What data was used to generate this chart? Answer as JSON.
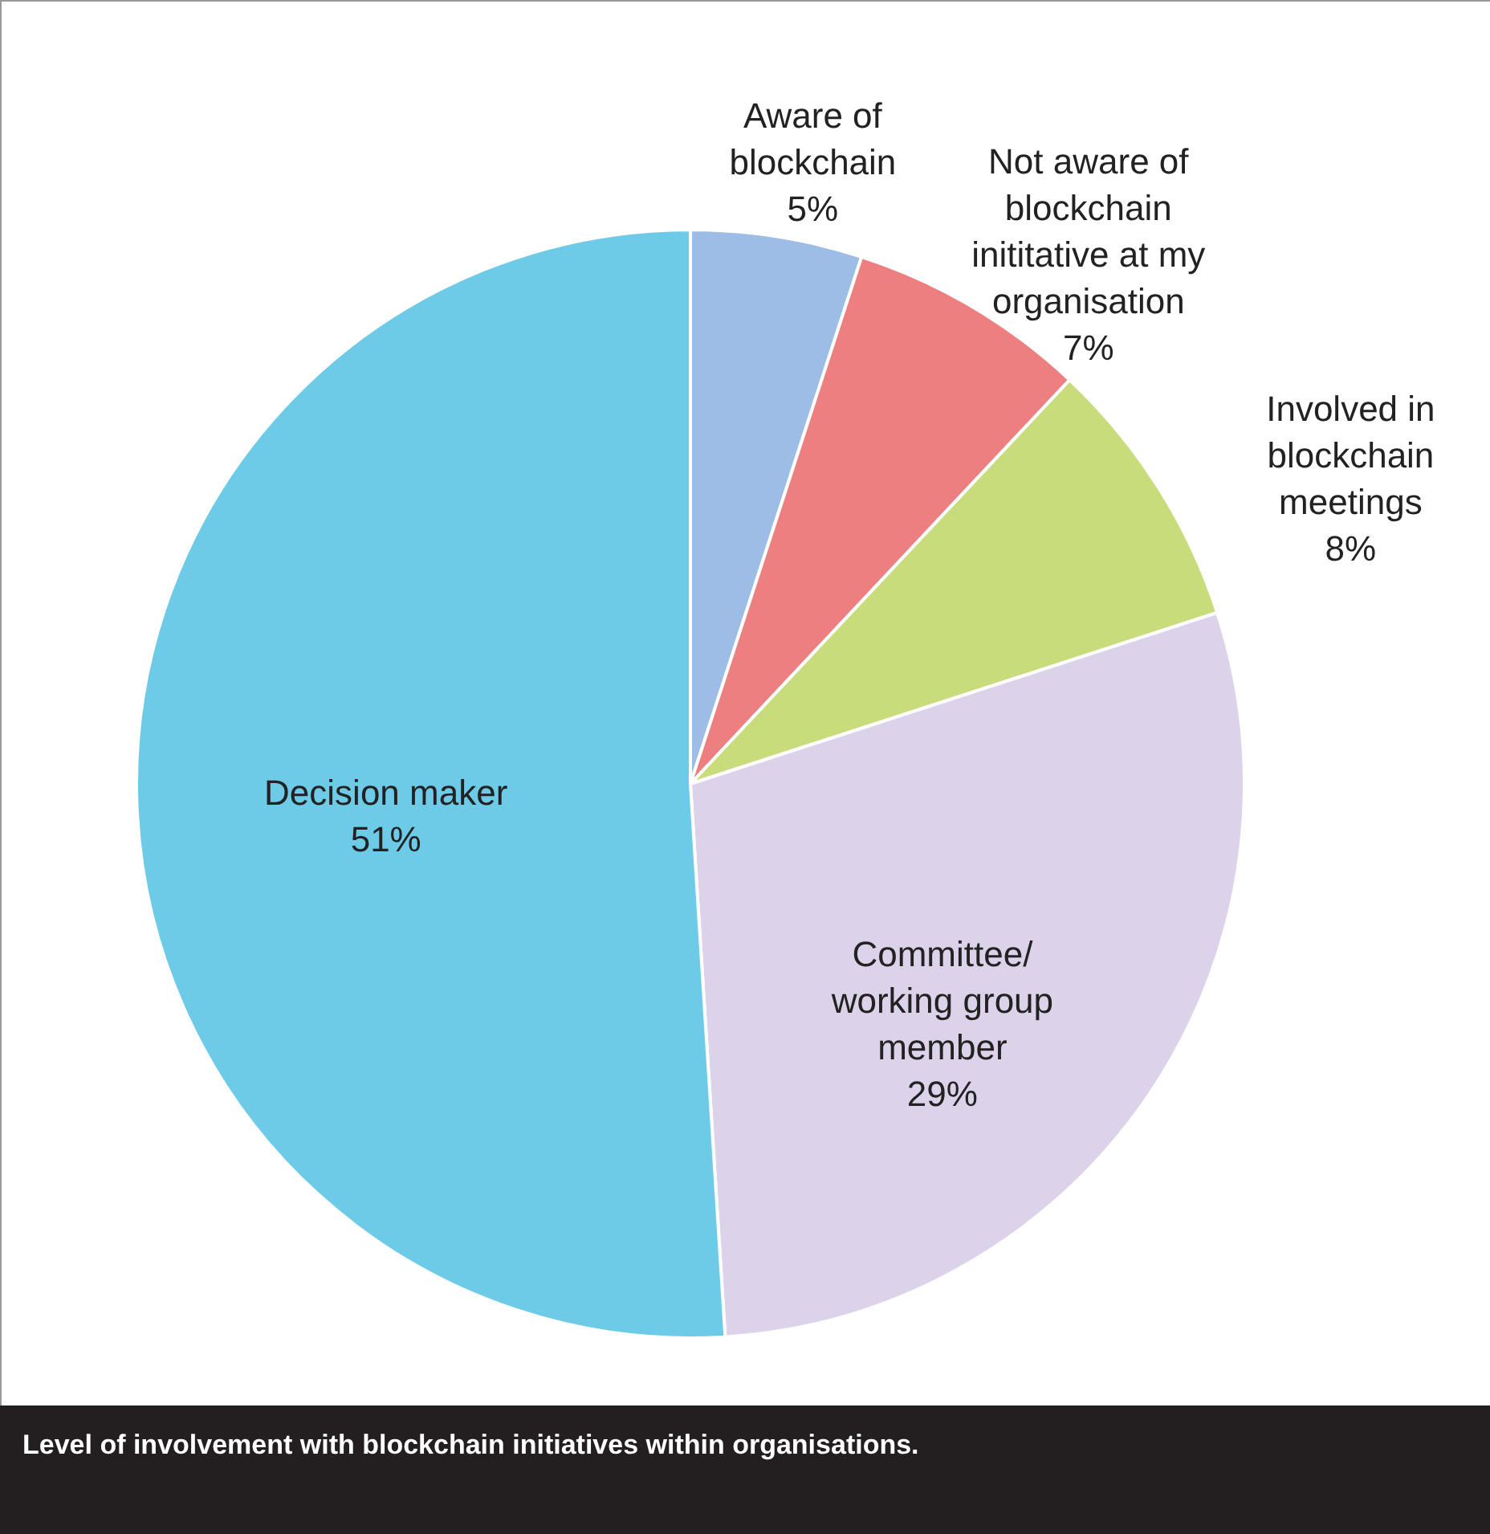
{
  "chart_data": {
    "type": "pie",
    "categories": [
      "Aware of blockchain",
      "Not aware of blockchain inititative at my organisation",
      "Involved in blockchain meetings",
      "Committee/ working group member",
      "Decision maker"
    ],
    "values": [
      5,
      7,
      8,
      29,
      51
    ],
    "colors": [
      "#9dbde6",
      "#ee7f80",
      "#c9dc7c",
      "#dcd3ea",
      "#6ecbe8"
    ],
    "value_labels": [
      "5%",
      "7%",
      "8%",
      "29%",
      "51%"
    ],
    "annotations": [
      "Level of involvement with blockchain initiatives within organisations."
    ]
  }
}
